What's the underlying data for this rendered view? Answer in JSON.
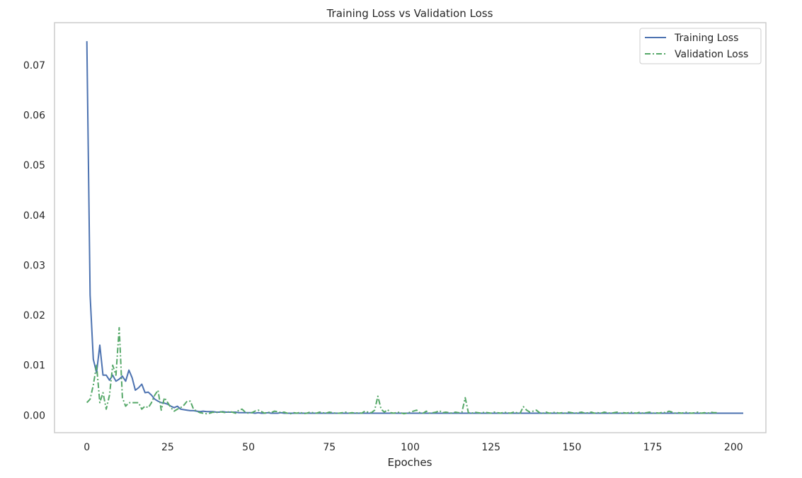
{
  "chart_data": {
    "type": "line",
    "title": "Training Loss vs Validation Loss",
    "xlabel": "Epoches",
    "ylabel": "",
    "xlim": [
      -10,
      210
    ],
    "ylim": [
      -0.0035,
      0.0785
    ],
    "xticks": [
      0,
      25,
      50,
      75,
      100,
      125,
      150,
      175,
      200
    ],
    "xtick_labels": [
      "0",
      "25",
      "50",
      "75",
      "100",
      "125",
      "150",
      "175",
      "200"
    ],
    "yticks": [
      0.0,
      0.01,
      0.02,
      0.03,
      0.04,
      0.05,
      0.06,
      0.07
    ],
    "ytick_labels": [
      "0.00",
      "0.01",
      "0.02",
      "0.03",
      "0.04",
      "0.05",
      "0.06",
      "0.07"
    ],
    "grid": false,
    "legend_position": "top-right",
    "series": [
      {
        "name": "Training Loss",
        "color": "#4c72b0",
        "style": "solid",
        "x_start": 0,
        "x_step": 1,
        "values": [
          0.0748,
          0.024,
          0.0112,
          0.0085,
          0.014,
          0.008,
          0.008,
          0.007,
          0.008,
          0.0068,
          0.0072,
          0.0078,
          0.0068,
          0.009,
          0.0075,
          0.005,
          0.0055,
          0.0062,
          0.0045,
          0.0046,
          0.004,
          0.0032,
          0.0028,
          0.0025,
          0.0024,
          0.0022,
          0.0018,
          0.0015,
          0.0018,
          0.0012,
          0.0011,
          0.001,
          0.0009,
          0.0009,
          0.0008,
          0.0007,
          0.0008,
          0.0007,
          0.0007,
          0.0007,
          0.0006,
          0.0006,
          0.0007,
          0.0006,
          0.0006,
          0.0006,
          0.0006,
          0.0005,
          0.0005,
          0.0005,
          0.0005,
          0.0005,
          0.0004,
          0.0005,
          0.0004,
          0.0004,
          0.0005,
          0.0004,
          0.0004,
          0.0004,
          0.0005,
          0.0004,
          0.0004,
          0.0004,
          0.0004,
          0.0004,
          0.0004,
          0.0004,
          0.0004,
          0.0004,
          0.0004,
          0.0004,
          0.0004,
          0.0004,
          0.0004,
          0.0004,
          0.0004,
          0.0004,
          0.0004,
          0.0004,
          0.0004,
          0.0004,
          0.0004,
          0.0004,
          0.0004,
          0.0004,
          0.0004,
          0.0004,
          0.0004,
          0.0004,
          0.0004,
          0.0004,
          0.0004,
          0.0004,
          0.0004,
          0.0004,
          0.0004,
          0.0004,
          0.0004,
          0.0004,
          0.0004,
          0.0004,
          0.0004,
          0.0004,
          0.0004,
          0.0004,
          0.0004,
          0.0004,
          0.0004,
          0.0004,
          0.0004,
          0.0004,
          0.0004,
          0.0004,
          0.0004,
          0.0004,
          0.0004,
          0.0004,
          0.0004,
          0.0004,
          0.0004,
          0.0004,
          0.0004,
          0.0004,
          0.0004,
          0.0004,
          0.0004,
          0.0004,
          0.0004,
          0.0004,
          0.0004,
          0.0004,
          0.0004,
          0.0004,
          0.0004,
          0.0004,
          0.0004,
          0.0004,
          0.0004,
          0.0004,
          0.0004,
          0.0004,
          0.0004,
          0.0004,
          0.0004,
          0.0004,
          0.0004,
          0.0004,
          0.0004,
          0.0004,
          0.0004,
          0.0004,
          0.0004,
          0.0004,
          0.0004,
          0.0004,
          0.0004,
          0.0004,
          0.0004,
          0.0004,
          0.0004,
          0.0004,
          0.0004,
          0.0004,
          0.0004,
          0.0004,
          0.0004,
          0.0004,
          0.0004,
          0.0004,
          0.0004,
          0.0004,
          0.0004,
          0.0004,
          0.0004,
          0.0004,
          0.0004,
          0.0004,
          0.0004,
          0.0004,
          0.0004,
          0.0004,
          0.0004,
          0.0004,
          0.0004,
          0.0004,
          0.0004,
          0.0004,
          0.0004,
          0.0004,
          0.0004,
          0.0004,
          0.0004,
          0.0004,
          0.0004,
          0.0004,
          0.0004,
          0.0004,
          0.0004,
          0.0004,
          0.0004,
          0.0004,
          0.0004,
          0.0004
        ]
      },
      {
        "name": "Validation Loss",
        "color": "#55a868",
        "style": "dashdot",
        "x_start": 0,
        "x_step": 1,
        "values": [
          0.0025,
          0.0032,
          0.006,
          0.01,
          0.0025,
          0.0045,
          0.0012,
          0.004,
          0.01,
          0.008,
          0.0175,
          0.0035,
          0.0018,
          0.0025,
          0.0025,
          0.0025,
          0.0025,
          0.0012,
          0.0018,
          0.0015,
          0.0025,
          0.004,
          0.005,
          0.001,
          0.0035,
          0.0025,
          0.0015,
          0.0008,
          0.0012,
          0.0015,
          0.002,
          0.0028,
          0.0028,
          0.0012,
          0.0008,
          0.0005,
          0.0004,
          0.0003,
          0.0004,
          0.0006,
          0.0005,
          0.0007,
          0.0006,
          0.0005,
          0.0007,
          0.0006,
          0.0004,
          0.001,
          0.0012,
          0.0006,
          0.0004,
          0.0005,
          0.0008,
          0.001,
          0.0007,
          0.0004,
          0.0006,
          0.0005,
          0.0008,
          0.0007,
          0.0005,
          0.0006,
          0.0004,
          0.0003,
          0.0005,
          0.0004,
          0.0006,
          0.0003,
          0.0004,
          0.0006,
          0.0005,
          0.0004,
          0.0006,
          0.0005,
          0.0004,
          0.0006,
          0.0005,
          0.0004,
          0.0004,
          0.0005,
          0.0006,
          0.0004,
          0.0005,
          0.0004,
          0.0005,
          0.0004,
          0.0008,
          0.0006,
          0.0005,
          0.001,
          0.0038,
          0.0012,
          0.0006,
          0.0011,
          0.0005,
          0.0004,
          0.0006,
          0.0005,
          0.0003,
          0.0004,
          0.0006,
          0.0008,
          0.001,
          0.0005,
          0.0004,
          0.0008,
          0.0004,
          0.0005,
          0.0006,
          0.0009,
          0.0005,
          0.0006,
          0.0005,
          0.0004,
          0.0006,
          0.0005,
          0.0006,
          0.0035,
          0.0005,
          0.0004,
          0.0006,
          0.0005,
          0.0004,
          0.0006,
          0.0005,
          0.0004,
          0.0006,
          0.0005,
          0.0004,
          0.0006,
          0.0005,
          0.0004,
          0.0006,
          0.0005,
          0.0004,
          0.0017,
          0.001,
          0.0006,
          0.0008,
          0.001,
          0.0005,
          0.0004,
          0.0006,
          0.0004,
          0.0005,
          0.0006,
          0.0004,
          0.0005,
          0.0004,
          0.0006,
          0.0005,
          0.0004,
          0.0005,
          0.0006,
          0.0004,
          0.0005,
          0.0006,
          0.0004,
          0.0005,
          0.0004,
          0.0006,
          0.0005,
          0.0004,
          0.0005,
          0.0006,
          0.0004,
          0.0005,
          0.0004,
          0.0006,
          0.0005,
          0.0004,
          0.0006,
          0.0004,
          0.0005,
          0.0006,
          0.0004,
          0.0005,
          0.0004,
          0.0006,
          0.0005,
          0.0008,
          0.0006,
          0.0004,
          0.0005,
          0.0004,
          0.0006,
          0.0005,
          0.0004,
          0.0005,
          0.0006,
          0.0004,
          0.0005,
          0.0004,
          0.0006,
          0.0005,
          0.0005
        ]
      }
    ]
  }
}
